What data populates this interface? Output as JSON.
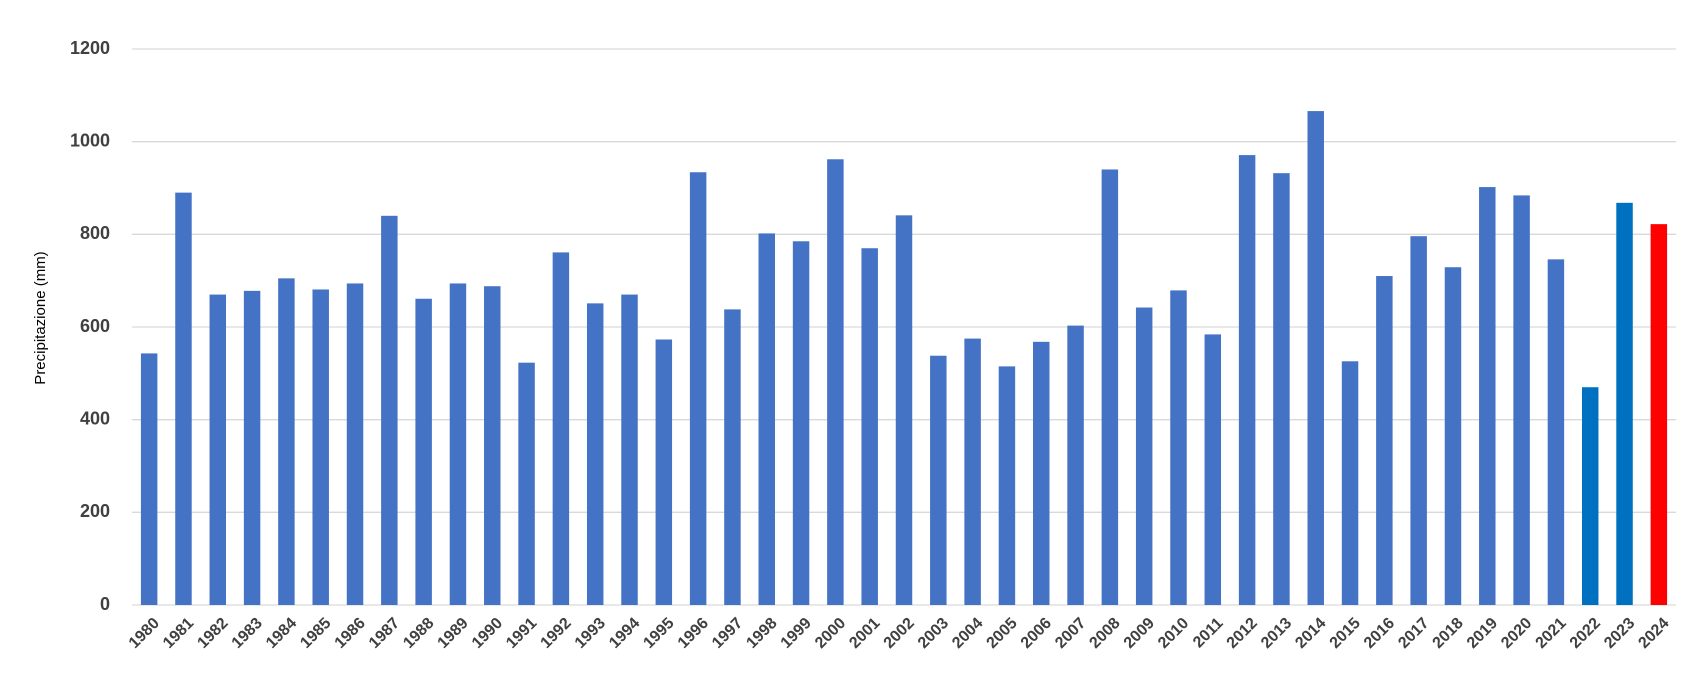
{
  "chart_data": {
    "type": "bar",
    "y_label": "Precipitazione  (mm)",
    "categories": [
      "1980",
      "1981",
      "1982",
      "1983",
      "1984",
      "1985",
      "1986",
      "1987",
      "1988",
      "1989",
      "1990",
      "1991",
      "1992",
      "1993",
      "1994",
      "1995",
      "1996",
      "1997",
      "1998",
      "1999",
      "2000",
      "2001",
      "2002",
      "2003",
      "2004",
      "2005",
      "2006",
      "2007",
      "2008",
      "2009",
      "2010",
      "2011",
      "2012",
      "2013",
      "2014",
      "2015",
      "2016",
      "2017",
      "2018",
      "2019",
      "2020",
      "2021",
      "2022",
      "2023",
      "2024"
    ],
    "values": [
      543,
      890,
      670,
      678,
      705,
      681,
      694,
      840,
      661,
      694,
      688,
      523,
      761,
      651,
      670,
      573,
      934,
      638,
      802,
      785,
      962,
      770,
      841,
      538,
      575,
      515,
      568,
      603,
      940,
      642,
      679,
      584,
      971,
      932,
      1066,
      526,
      710,
      796,
      729,
      902,
      884,
      746,
      470,
      868,
      822
    ],
    "colors": [
      "#4472c4",
      "#4472c4",
      "#4472c4",
      "#4472c4",
      "#4472c4",
      "#4472c4",
      "#4472c4",
      "#4472c4",
      "#4472c4",
      "#4472c4",
      "#4472c4",
      "#4472c4",
      "#4472c4",
      "#4472c4",
      "#4472c4",
      "#4472c4",
      "#4472c4",
      "#4472c4",
      "#4472c4",
      "#4472c4",
      "#4472c4",
      "#4472c4",
      "#4472c4",
      "#4472c4",
      "#4472c4",
      "#4472c4",
      "#4472c4",
      "#4472c4",
      "#4472c4",
      "#4472c4",
      "#4472c4",
      "#4472c4",
      "#4472c4",
      "#4472c4",
      "#4472c4",
      "#4472c4",
      "#4472c4",
      "#4472c4",
      "#4472c4",
      "#4472c4",
      "#4472c4",
      "#4472c4",
      "#0070c0",
      "#0070c0",
      "#ff0000"
    ],
    "ylim": [
      0,
      1200
    ],
    "yticks": [
      0,
      200,
      400,
      600,
      800,
      1000,
      1200
    ],
    "grid": true
  }
}
